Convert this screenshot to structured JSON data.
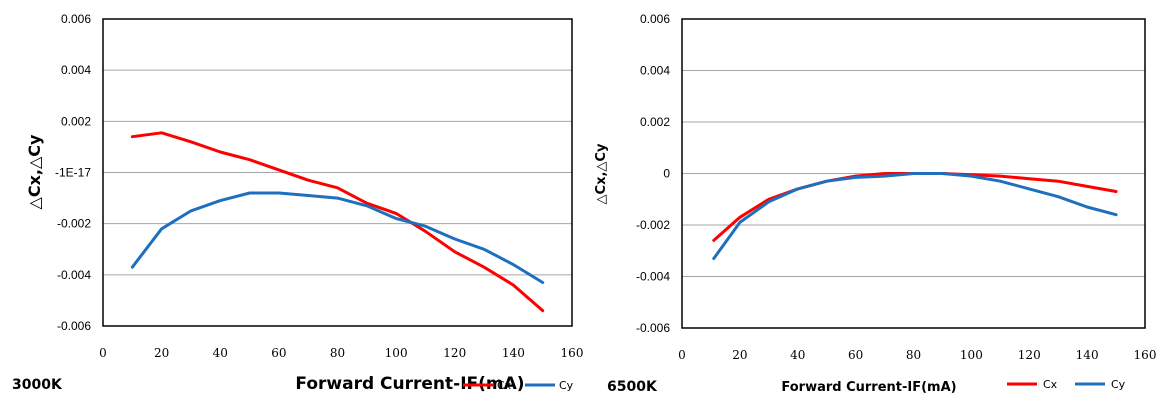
{
  "colors": {
    "cx": "#ff0000",
    "cy": "#1f6fbf",
    "grid": "#a6a6a6"
  },
  "chart_data": [
    {
      "type": "line",
      "caption": "3000K",
      "xlabel": "Forward Current-IF(mA)",
      "ylabel": "△Cx,△Cy",
      "xlim": [
        0,
        160
      ],
      "ylim": [
        -0.006,
        0.006
      ],
      "x_tick_labels": [
        "0",
        "20",
        "40",
        "60",
        "80",
        "100",
        "120",
        "140",
        "160"
      ],
      "y_tick_labels": [
        "-0.006",
        "-0.004",
        "-0.002",
        "-1E-17",
        "0.002",
        "0.004",
        "0.006"
      ],
      "grid": "horizontal",
      "legend": "below",
      "series": [
        {
          "name": "Cx",
          "x": [
            10,
            20,
            30,
            40,
            50,
            60,
            70,
            80,
            90,
            100,
            110,
            120,
            130,
            140,
            150
          ],
          "y": [
            0.0014,
            0.00155,
            0.0012,
            0.0008,
            0.0005,
            0.0001,
            -0.0003,
            -0.0006,
            -0.0012,
            -0.0016,
            -0.0023,
            -0.0031,
            -0.0037,
            -0.0044,
            -0.0054
          ]
        },
        {
          "name": "Cy",
          "x": [
            10,
            20,
            30,
            40,
            50,
            60,
            70,
            80,
            90,
            100,
            110,
            120,
            130,
            140,
            150
          ],
          "y": [
            -0.0037,
            -0.0022,
            -0.0015,
            -0.0011,
            -0.0008,
            -0.0008,
            -0.0009,
            -0.001,
            -0.0013,
            -0.0018,
            -0.0021,
            -0.0026,
            -0.003,
            -0.0036,
            -0.0043
          ]
        }
      ]
    },
    {
      "type": "line",
      "caption": "6500K",
      "xlabel": "Forward Current-IF(mA)",
      "ylabel": "△Cx,△Cy",
      "xlim": [
        0,
        160
      ],
      "ylim": [
        -0.006,
        0.006
      ],
      "x_tick_labels": [
        "0",
        "20",
        "40",
        "60",
        "80",
        "100",
        "120",
        "140",
        "160"
      ],
      "y_tick_labels": [
        "-0.006",
        "-0.004",
        "-0.002",
        "0",
        "0.002",
        "0.004",
        "0.006"
      ],
      "grid": "horizontal",
      "legend": "below",
      "series": [
        {
          "name": "Cx",
          "x": [
            11,
            20,
            30,
            40,
            50,
            60,
            70,
            80,
            90,
            100,
            110,
            120,
            130,
            140,
            150
          ],
          "y": [
            -0.0026,
            -0.0017,
            -0.001,
            -0.0006,
            -0.0003,
            -0.0001,
            0.0,
            0.0,
            0.0,
            -5e-05,
            -0.0001,
            -0.0002,
            -0.0003,
            -0.0005,
            -0.0007
          ]
        },
        {
          "name": "Cy",
          "x": [
            11,
            20,
            30,
            40,
            50,
            60,
            70,
            80,
            90,
            100,
            110,
            120,
            130,
            140,
            150
          ],
          "y": [
            -0.0033,
            -0.0019,
            -0.0011,
            -0.0006,
            -0.0003,
            -0.00015,
            -0.0001,
            0.0,
            0.0,
            -0.0001,
            -0.0003,
            -0.0006,
            -0.0009,
            -0.0013,
            -0.0016
          ]
        }
      ]
    }
  ]
}
